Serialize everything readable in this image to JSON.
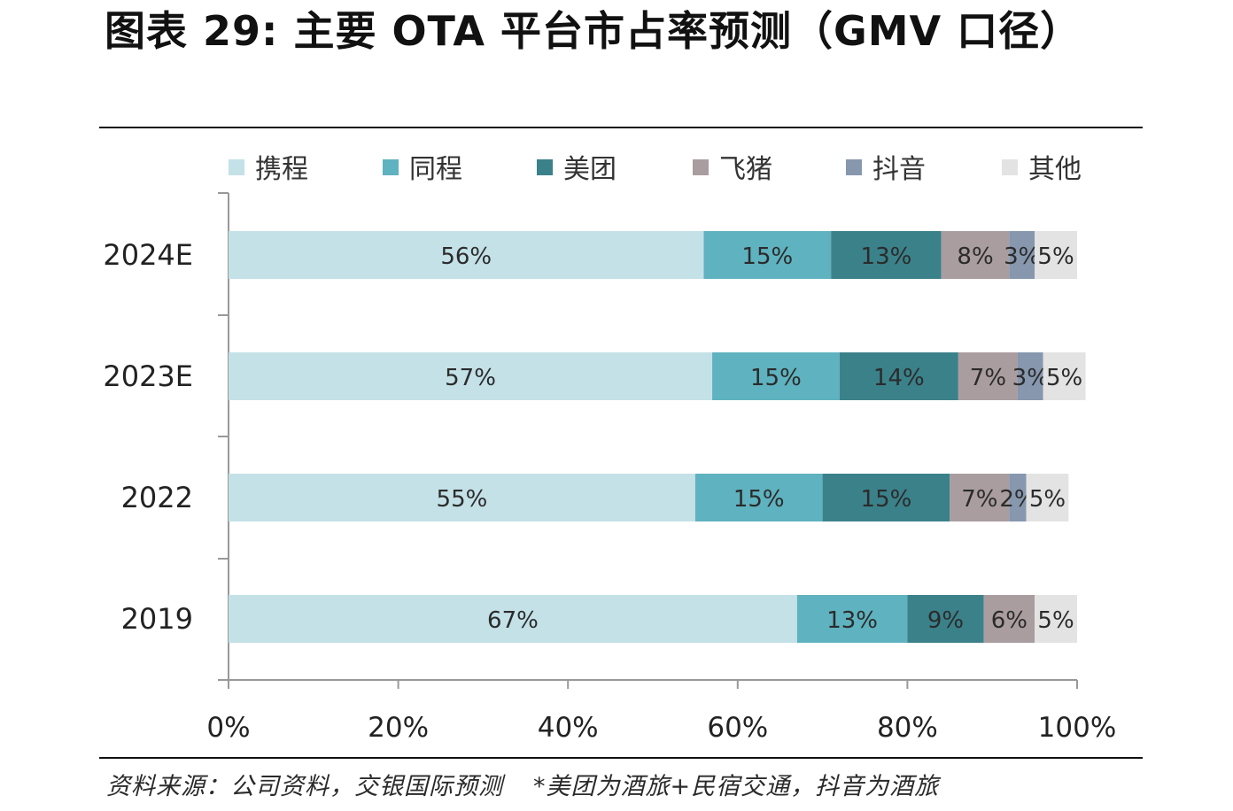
{
  "header": {
    "title": "图表 29: 主要 OTA 平台市占率预测（GMV 口径）"
  },
  "footer": {
    "source": "资料来源：公司资料，交银国际预测",
    "note": "*美团为酒旅+民宿交通，抖音为酒旅"
  },
  "chart_data": {
    "type": "bar",
    "orientation": "horizontal",
    "stacked": true,
    "title": "图表 29: 主要 OTA 平台市占率预测（GMV 口径）",
    "categories": [
      "2024E",
      "2023E",
      "2022",
      "2019"
    ],
    "series": [
      {
        "name": "携程",
        "color": "#c3e1e7",
        "values": [
          56,
          57,
          55,
          67
        ]
      },
      {
        "name": "同程",
        "color": "#5fb2bf",
        "values": [
          15,
          15,
          15,
          13
        ]
      },
      {
        "name": "美团",
        "color": "#3b818a",
        "values": [
          13,
          14,
          15,
          9
        ]
      },
      {
        "name": "飞猪",
        "color": "#a99da0",
        "values": [
          8,
          7,
          7,
          6
        ]
      },
      {
        "name": "抖音",
        "color": "#8697ae",
        "values": [
          3,
          3,
          2,
          null
        ]
      },
      {
        "name": "其他",
        "color": "#e3e3e3",
        "values": [
          5,
          5,
          5,
          5
        ]
      }
    ],
    "xlim": [
      0,
      100
    ],
    "xticks": [
      "0%",
      "20%",
      "40%",
      "60%",
      "80%",
      "100%"
    ],
    "xlabel": "",
    "ylabel": "",
    "legend_position": "top",
    "value_suffix": "%"
  }
}
